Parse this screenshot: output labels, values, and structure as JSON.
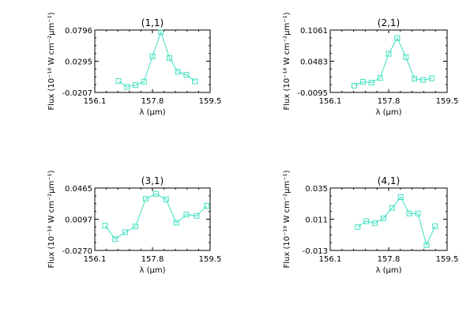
{
  "line_color": "#40e0c0",
  "axis_color": "#000000",
  "chart_data": [
    {
      "type": "line",
      "title": "(1,1)",
      "xlabel": "λ (μm)",
      "ylabel": "Flux (10⁻¹⁸ W cm⁻²μm⁻¹)",
      "xlim": [
        156.1,
        159.5
      ],
      "ylim": [
        -0.0207,
        0.0796
      ],
      "xticks": [
        "156.1",
        "157.8",
        "159.5"
      ],
      "yticks": [
        "-0.0207",
        "0.0295",
        "0.0796"
      ],
      "ytick_values": [
        -0.0207,
        0.0295,
        0.0796
      ],
      "x": [
        156.8,
        157.05,
        157.3,
        157.55,
        157.8,
        158.05,
        158.3,
        158.55,
        158.8,
        159.05
      ],
      "y": [
        -0.0024,
        -0.0119,
        -0.0089,
        -0.0034,
        0.0372,
        0.0761,
        0.0347,
        0.0124,
        0.0077,
        -0.0029
      ]
    },
    {
      "type": "line",
      "title": "(2,1)",
      "xlabel": "λ (μm)",
      "ylabel": "Flux (10⁻¹⁸ W cm⁻²μm⁻¹)",
      "xlim": [
        156.1,
        159.5
      ],
      "ylim": [
        -0.0095,
        0.1061
      ],
      "xticks": [
        "156.1",
        "157.8",
        "159.5"
      ],
      "yticks": [
        "-0.0095",
        "0.0483",
        "0.1061"
      ],
      "ytick_values": [
        -0.0095,
        0.0483,
        0.1061
      ],
      "x": [
        156.8,
        157.05,
        157.3,
        157.55,
        157.8,
        158.05,
        158.3,
        158.55,
        158.8,
        159.05
      ],
      "y": [
        0.0031,
        0.0102,
        0.0086,
        0.0172,
        0.0621,
        0.0912,
        0.0557,
        0.0161,
        0.0136,
        0.0166
      ]
    },
    {
      "type": "line",
      "title": "(3,1)",
      "xlabel": "λ (μm)",
      "ylabel": "Flux (10⁻¹⁸ W cm⁻²μm⁻¹)",
      "xlim": [
        156.1,
        159.5
      ],
      "ylim": [
        -0.027,
        0.0465
      ],
      "xticks": [
        "156.1",
        "157.8",
        "159.5"
      ],
      "yticks": [
        "-0.0270",
        "0.0097",
        "0.0465"
      ],
      "ytick_values": [
        -0.027,
        0.0097,
        0.0465
      ],
      "x": [
        156.4,
        156.7,
        157.0,
        157.3,
        157.6,
        157.9,
        158.2,
        158.5,
        158.8,
        159.1,
        159.4
      ],
      "y": [
        0.0022,
        -0.0137,
        -0.0054,
        0.0012,
        0.0337,
        0.0394,
        0.0331,
        0.0055,
        0.0151,
        0.0137,
        0.0255
      ]
    },
    {
      "type": "line",
      "title": "(4,1)",
      "xlabel": "λ (μm)",
      "ylabel": "Flux (10⁻¹⁸ W cm⁻²μm⁻¹)",
      "xlim": [
        156.1,
        159.5
      ],
      "ylim": [
        -0.013,
        0.035
      ],
      "xticks": [
        "156.1",
        "157.8",
        "159.5"
      ],
      "yticks": [
        "-0.013",
        "0.011",
        "0.035"
      ],
      "ytick_values": [
        -0.013,
        0.011,
        0.035
      ],
      "x": [
        156.9,
        157.15,
        157.4,
        157.65,
        157.9,
        158.15,
        158.4,
        158.65,
        158.9,
        159.15
      ],
      "y": [
        0.0051,
        0.0094,
        0.0081,
        0.0117,
        0.0197,
        0.028,
        0.0154,
        0.0154,
        -0.0089,
        0.0057
      ]
    }
  ]
}
